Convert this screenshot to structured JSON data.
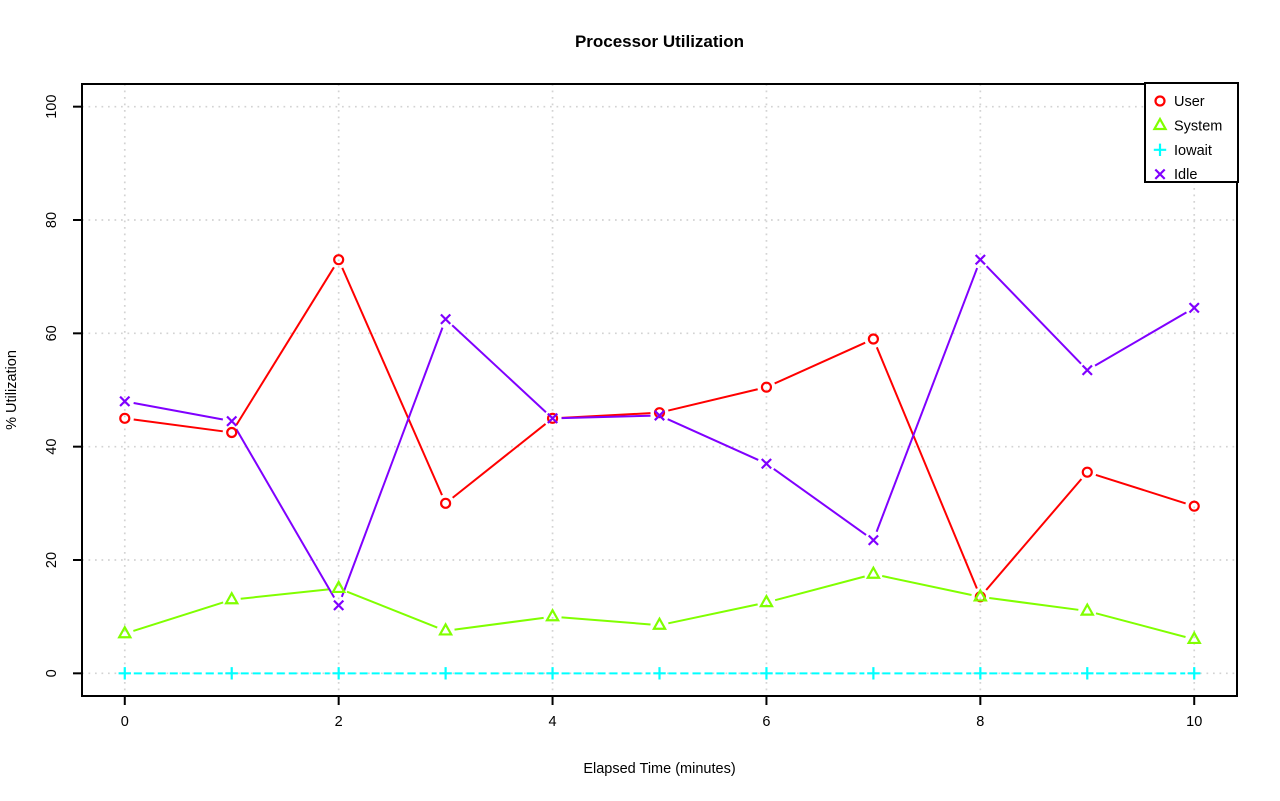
{
  "chart_data": {
    "type": "line",
    "title": "Processor Utilization",
    "xlabel": "Elapsed Time (minutes)",
    "ylabel": "% Utilization",
    "x": [
      0,
      1,
      2,
      3,
      4,
      5,
      6,
      7,
      8,
      9,
      10
    ],
    "series": [
      {
        "name": "User",
        "marker": "circle",
        "color": "#FF0000",
        "line": "solid",
        "values": [
          45,
          42.5,
          73,
          30,
          45,
          46,
          50.5,
          59,
          13.5,
          35.5,
          29.5
        ]
      },
      {
        "name": "System",
        "marker": "triangle",
        "color": "#80FF00",
        "line": "solid",
        "values": [
          7,
          13,
          15,
          7.5,
          10,
          8.5,
          12.5,
          17.5,
          13.5,
          11,
          6
        ]
      },
      {
        "name": "Iowait",
        "marker": "plus",
        "color": "#00FFFF",
        "line": "dashed",
        "values": [
          0,
          0,
          0,
          0,
          0,
          0,
          0,
          0,
          0,
          0,
          0
        ]
      },
      {
        "name": "Idle",
        "marker": "x",
        "color": "#8000FF",
        "line": "solid",
        "values": [
          48,
          44.5,
          12,
          62.5,
          45,
          45.5,
          37,
          23.5,
          73,
          53.5,
          64.5
        ]
      }
    ],
    "xticks": [
      0,
      2,
      4,
      6,
      8,
      10
    ],
    "yticks": [
      0,
      20,
      40,
      60,
      80,
      100
    ],
    "xlim": [
      -0.4,
      10.4
    ],
    "ylim": [
      -4,
      104
    ],
    "grid": true,
    "grid_color": "#d3d3d3",
    "axis_color": "#000000",
    "background": "#ffffff",
    "legend_position": "topright"
  }
}
